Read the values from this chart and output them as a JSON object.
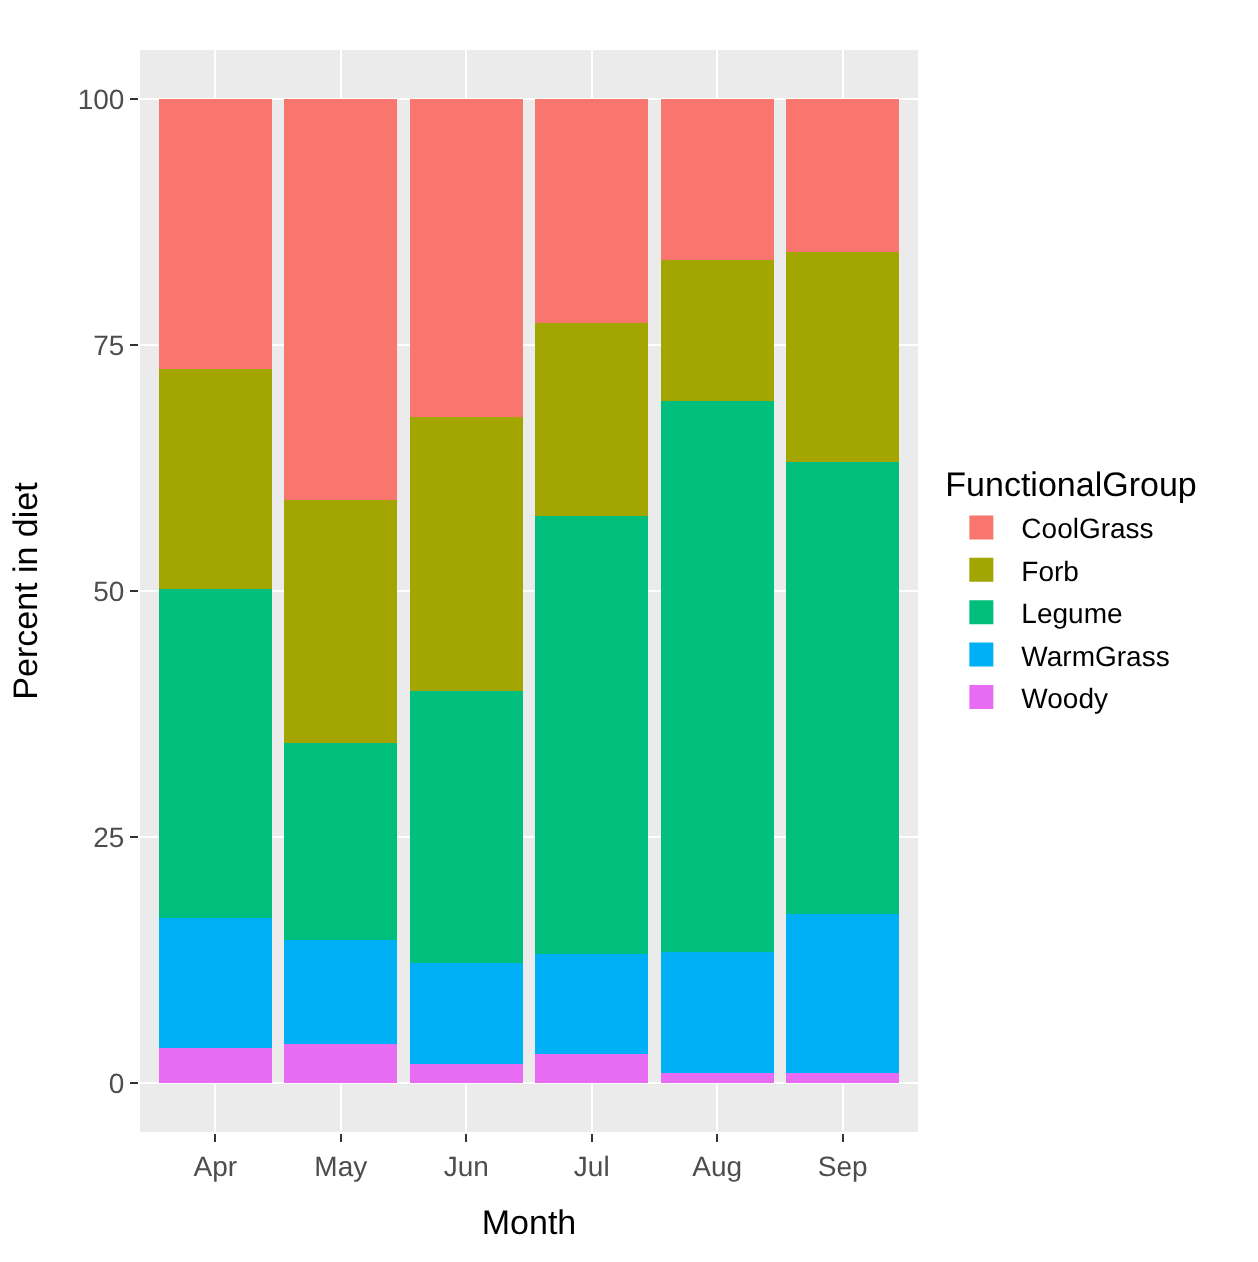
{
  "chart_data": {
    "type": "bar",
    "stacked": true,
    "xlabel": "Month",
    "ylabel": "Percent in diet",
    "legend_title": "FunctionalGroup",
    "categories": [
      "Apr",
      "May",
      "Jun",
      "Jul",
      "Aug",
      "Sep"
    ],
    "series": [
      {
        "name": "Woody",
        "color": "#e76bf3",
        "values": [
          3.5,
          3.9,
          1.9,
          2.9,
          1.0,
          1.0
        ]
      },
      {
        "name": "WarmGrass",
        "color": "#00b0f6",
        "values": [
          13.3,
          10.6,
          10.3,
          10.2,
          12.3,
          16.2
        ]
      },
      {
        "name": "Legume",
        "color": "#00bf7d",
        "values": [
          33.4,
          20.0,
          27.6,
          44.5,
          56.0,
          45.9
        ]
      },
      {
        "name": "Forb",
        "color": "#a3a500",
        "values": [
          22.4,
          24.8,
          27.9,
          19.6,
          14.4,
          21.4
        ]
      },
      {
        "name": "CoolGrass",
        "color": "#f8766d",
        "values": [
          27.4,
          40.7,
          32.3,
          22.8,
          16.3,
          15.5
        ]
      }
    ],
    "ylim": [
      -5,
      105
    ],
    "yticks": [
      0,
      25,
      50,
      75,
      100
    ],
    "grid": true,
    "legend": "right"
  }
}
